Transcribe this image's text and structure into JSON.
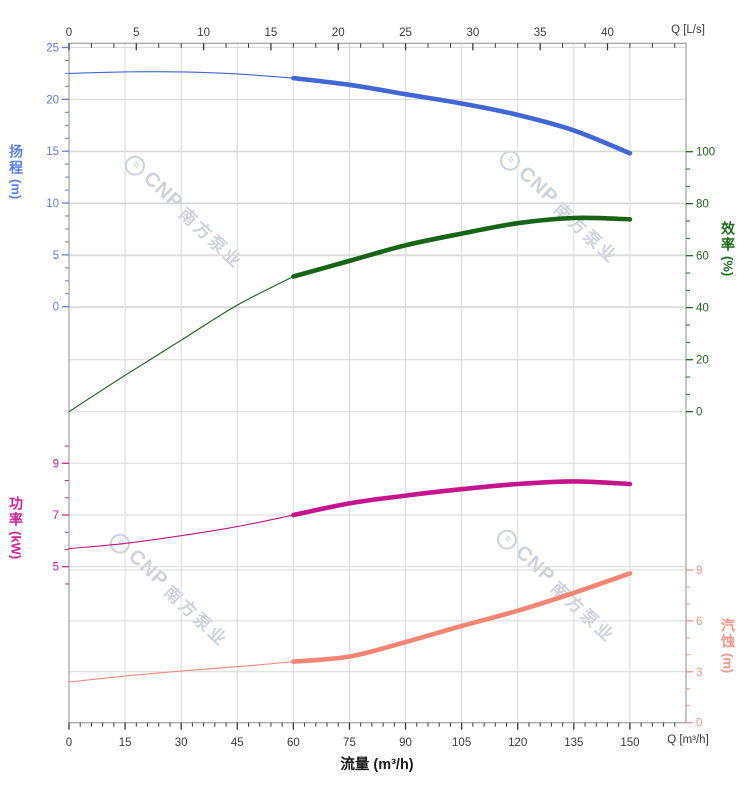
{
  "watermark": {
    "brand": "CNP",
    "company": "南方泵业",
    "logo_glyph": "≈",
    "color": "#ccd3dd"
  },
  "chart_data": {
    "type": "line",
    "title": "",
    "xlabel": "流量 (m³/h)",
    "colors": {
      "grid": "#d9d9d9",
      "frame": "#a0a0a0",
      "axis_text": "#3a3a3a"
    },
    "x_bottom": {
      "unit_label": "Q [m³/h]",
      "range": [
        0,
        165
      ],
      "majors": [
        0,
        15,
        30,
        45,
        60,
        75,
        90,
        105,
        120,
        135,
        150
      ],
      "minor": {
        "from": 0,
        "to": 164,
        "step": 3
      }
    },
    "x_top": {
      "unit_label": "Q [L/s]",
      "range": [
        0,
        45.8
      ],
      "majors": [
        0,
        5,
        10,
        15,
        20,
        25,
        30,
        35,
        40
      ],
      "minor": {
        "from": 0,
        "to": 45.8,
        "step": 1.6667
      },
      "to_bottom_factor": 3.6
    },
    "y_axes": [
      {
        "id": "head",
        "side": "left",
        "title": "扬程",
        "unit": "(m)",
        "range": [
          0,
          25
        ],
        "majors": [
          0,
          5,
          10,
          15,
          20,
          25
        ],
        "minor": {
          "from": 0,
          "to": 25,
          "step": 1.25
        },
        "color": "#4166d6",
        "text_color": "#5b7fe8"
      },
      {
        "id": "eff",
        "side": "right",
        "title": "效率",
        "unit": "(%)",
        "range": [
          0,
          100
        ],
        "majors": [
          0,
          20,
          40,
          60,
          80,
          100
        ],
        "minor": {
          "from": 0,
          "to": 100,
          "step": 6.6667
        },
        "color": "#156515",
        "text_color": "#1d6b1d"
      },
      {
        "id": "power",
        "side": "left",
        "title": "功率",
        "unit": "(kW)",
        "range": [
          4.33,
          9.67
        ],
        "majors": [
          5,
          7,
          9
        ],
        "minor": {
          "from": 4.3333,
          "to": 9.68,
          "step": 0.6667
        },
        "color": "#c6148e",
        "text_color": "#d0219c"
      },
      {
        "id": "npsh",
        "side": "right",
        "title": "汽蚀",
        "unit": "(m)",
        "range": [
          0,
          9
        ],
        "majors": [
          0,
          3,
          6,
          9
        ],
        "minor": {
          "from": 0,
          "to": 9,
          "step": 1
        },
        "color": "#f58471",
        "text_color": "#f59384"
      }
    ],
    "series": [
      {
        "name": "head",
        "axis": "head",
        "color": "#4166d6",
        "bold_range": [
          60,
          150
        ],
        "points": [
          [
            0,
            22.5
          ],
          [
            15,
            22.65
          ],
          [
            30,
            22.65
          ],
          [
            45,
            22.45
          ],
          [
            60,
            22.05
          ],
          [
            75,
            21.4
          ],
          [
            90,
            20.5
          ],
          [
            105,
            19.6
          ],
          [
            120,
            18.5
          ],
          [
            135,
            17.0
          ],
          [
            150,
            14.8
          ]
        ]
      },
      {
        "name": "efficiency",
        "axis": "eff",
        "color": "#156515",
        "bold_range": [
          60,
          150
        ],
        "points": [
          [
            0,
            0
          ],
          [
            15,
            14
          ],
          [
            30,
            27.5
          ],
          [
            45,
            41
          ],
          [
            60,
            52
          ],
          [
            75,
            58
          ],
          [
            90,
            64
          ],
          [
            105,
            68.5
          ],
          [
            120,
            72.5
          ],
          [
            135,
            74.5
          ],
          [
            150,
            74
          ]
        ]
      },
      {
        "name": "power",
        "axis": "power",
        "color": "#c6148e",
        "bold_range": [
          60,
          150
        ],
        "points": [
          [
            0,
            5.7
          ],
          [
            15,
            5.9
          ],
          [
            30,
            6.2
          ],
          [
            45,
            6.55
          ],
          [
            60,
            7.0
          ],
          [
            75,
            7.45
          ],
          [
            90,
            7.75
          ],
          [
            105,
            8.0
          ],
          [
            120,
            8.2
          ],
          [
            135,
            8.3
          ],
          [
            150,
            8.2
          ]
        ]
      },
      {
        "name": "npsh",
        "axis": "npsh",
        "color": "#f58471",
        "bold_range": [
          60,
          150
        ],
        "points": [
          [
            0,
            2.4
          ],
          [
            15,
            2.75
          ],
          [
            30,
            3.05
          ],
          [
            45,
            3.3
          ],
          [
            60,
            3.6
          ],
          [
            75,
            3.9
          ],
          [
            90,
            4.75
          ],
          [
            105,
            5.7
          ],
          [
            120,
            6.6
          ],
          [
            135,
            7.65
          ],
          [
            150,
            8.8
          ]
        ]
      }
    ]
  }
}
